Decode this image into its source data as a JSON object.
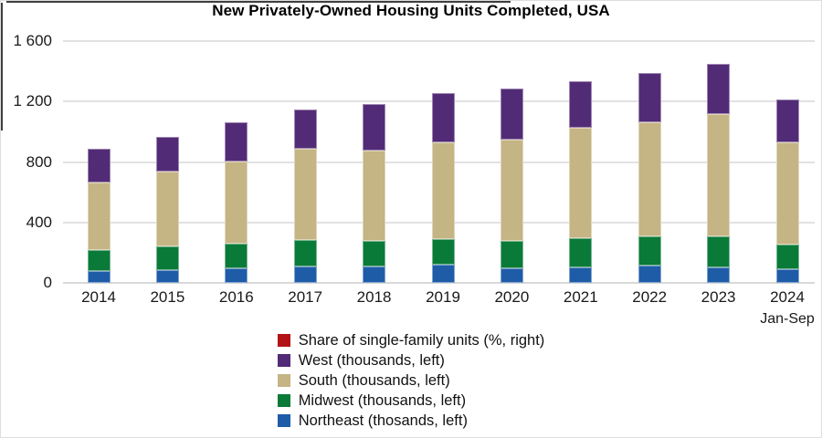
{
  "title": "New Privately-Owned Housing Units Completed, USA",
  "colors": {
    "single_family_red": "#b21317",
    "west_purple": "#522b76",
    "south_tan": "#c5b484",
    "midwest_green": "#0a7a38",
    "northeast_blue": "#1e5ca8",
    "gridline": "#e2e2e2",
    "text": "#1a1a1a"
  },
  "chart_data": {
    "type": "bar",
    "stacked": true,
    "title": "New Privately-Owned Housing Units Completed, USA",
    "categories": [
      "2014",
      "2015",
      "2016",
      "2017",
      "2018",
      "2019",
      "2020",
      "2021",
      "2022",
      "2023",
      "2024"
    ],
    "x_sub_label": {
      "category": "2024",
      "text": "Jan-Sep"
    },
    "series": [
      {
        "name": "Northeast (thosands, left)",
        "color": "#1e5ca8",
        "values": [
          80,
          85,
          95,
          110,
          110,
          120,
          95,
          105,
          115,
          105,
          90
        ]
      },
      {
        "name": "Midwest (thousands, left)",
        "color": "#0a7a38",
        "values": [
          140,
          155,
          165,
          175,
          165,
          170,
          185,
          190,
          190,
          205,
          165
        ]
      },
      {
        "name": "South (thousands, left)",
        "color": "#c5b484",
        "values": [
          445,
          495,
          545,
          605,
          600,
          640,
          670,
          730,
          755,
          805,
          675
        ]
      },
      {
        "name": "West (thousands, left)",
        "color": "#522b76",
        "values": [
          220,
          230,
          260,
          260,
          310,
          325,
          335,
          310,
          330,
          335,
          285
        ]
      }
    ],
    "series_totals": [
      885,
      965,
      1065,
      1150,
      1185,
      1255,
      1285,
      1335,
      1390,
      1450,
      1215
    ],
    "overlay_series": {
      "name": "Share of single-family units (%, right)",
      "color": "#b21317",
      "values": [],
      "note": "appears in legend only; no data drawn in plot area"
    },
    "y_axis": {
      "min": 0,
      "max": 1600,
      "step": 400,
      "tick_labels": [
        "1 600",
        "1 200",
        "800",
        "400",
        "0"
      ],
      "gridlines": true
    },
    "legend_position": "bottom",
    "legend": [
      {
        "label": "Share of single-family units (%, right)",
        "color": "#b21317"
      },
      {
        "label": "West (thousands, left)",
        "color": "#522b76"
      },
      {
        "label": "South (thousands, left)",
        "color": "#c5b484"
      },
      {
        "label": "Midwest (thousands, left)",
        "color": "#0a7a38"
      },
      {
        "label": "Northeast (thosands, left)",
        "color": "#1e5ca8"
      }
    ]
  }
}
